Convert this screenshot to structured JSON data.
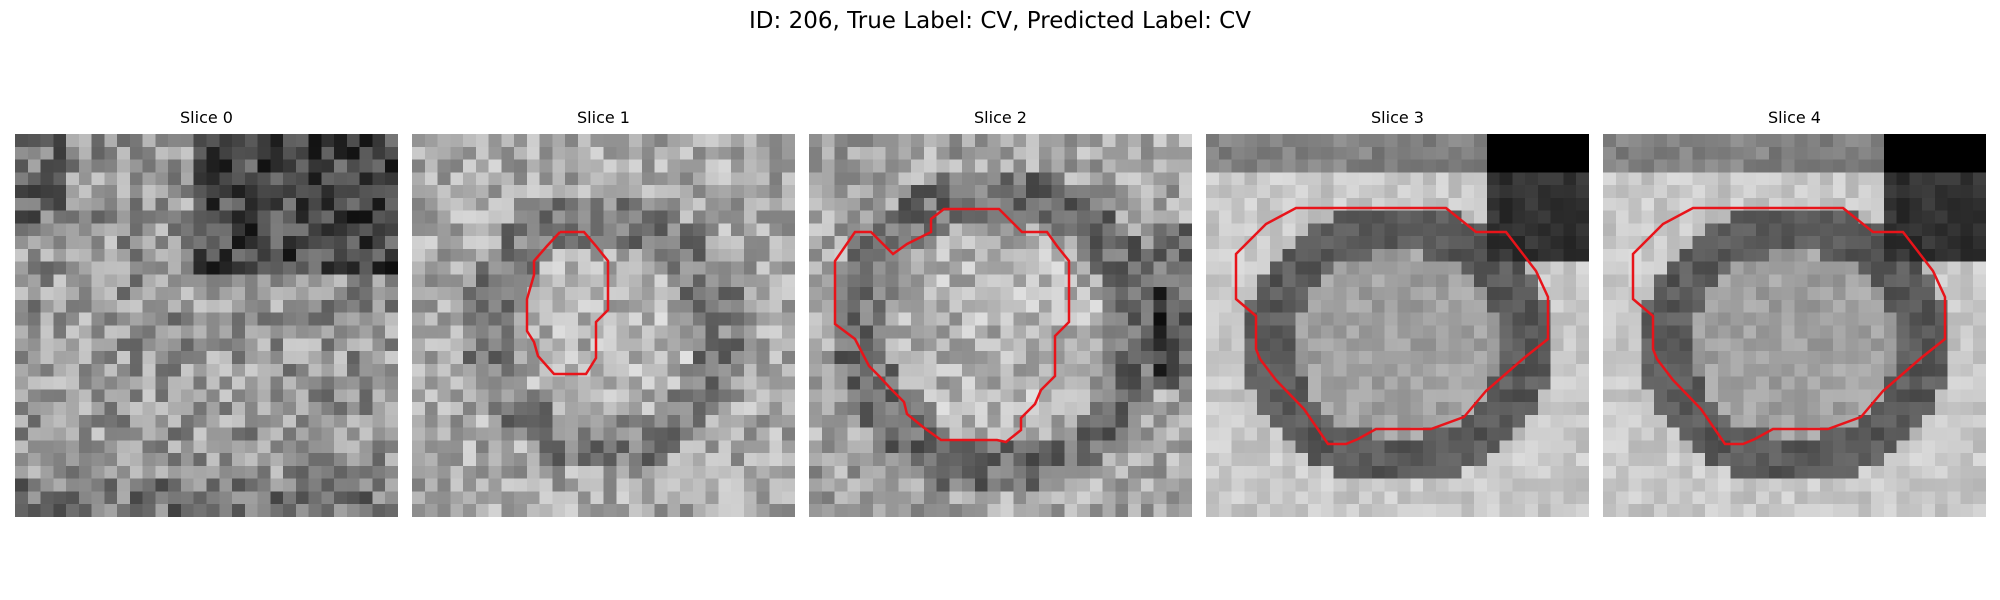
{
  "figure": {
    "title": "ID: 206, True Label: CV, Predicted Label: CV",
    "contour_color": "#e8141a",
    "image_colormap": "gray"
  },
  "panels": [
    {
      "title": "Slice 0",
      "has_contour": false
    },
    {
      "title": "Slice 1",
      "has_contour": true
    },
    {
      "title": "Slice 2",
      "has_contour": true
    },
    {
      "title": "Slice 3",
      "has_contour": true
    },
    {
      "title": "Slice 4",
      "has_contour": true
    }
  ]
}
